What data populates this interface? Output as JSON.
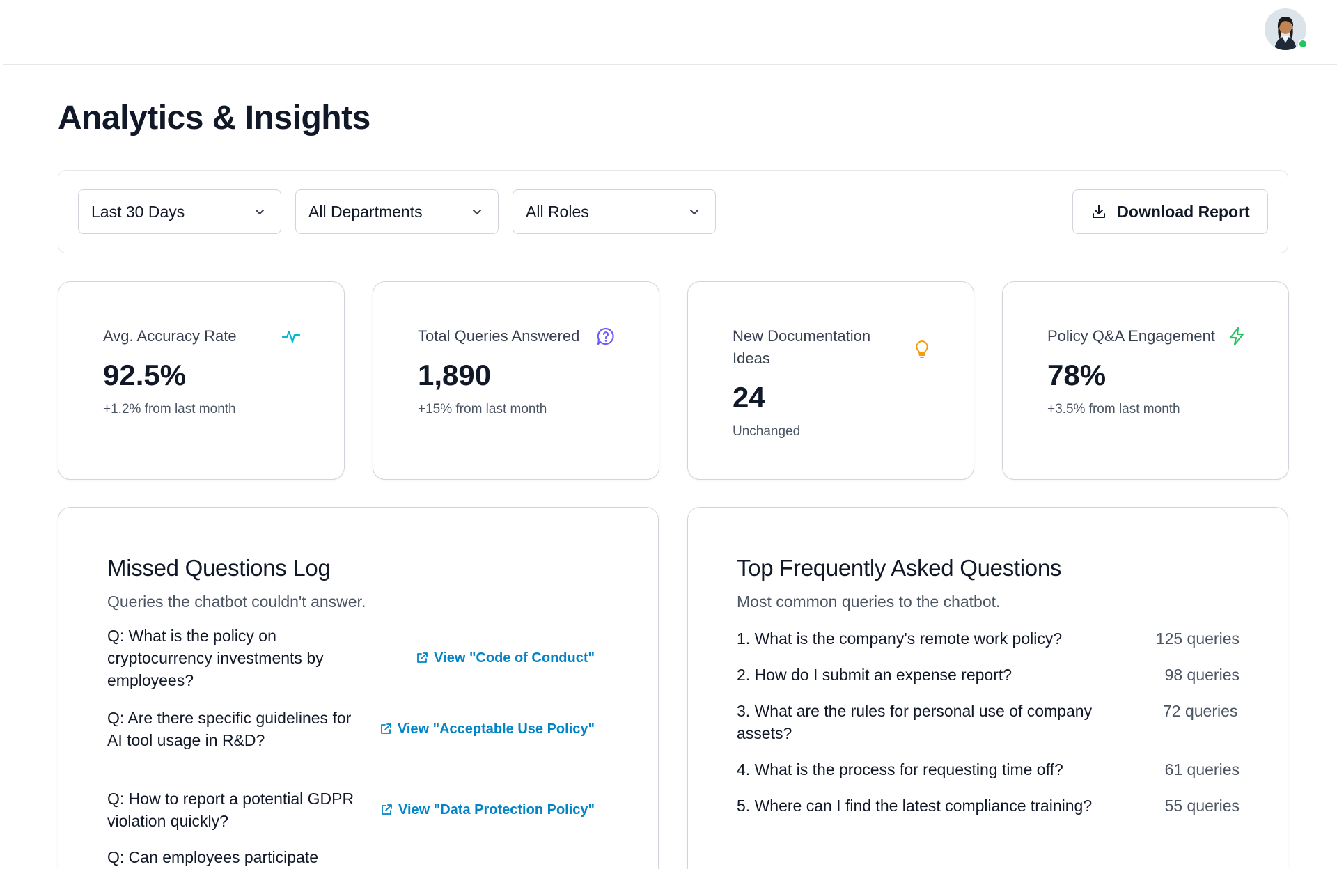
{
  "page": {
    "title": "Analytics & Insights"
  },
  "filters": {
    "period": "Last 30 Days",
    "department": "All Departments",
    "role": "All Roles",
    "download_label": "Download Report"
  },
  "stats": [
    {
      "label": "Avg. Accuracy Rate",
      "value": "92.5%",
      "delta": "+1.2% from last month",
      "icon": "activity-icon",
      "icon_color": "#06b6d4"
    },
    {
      "label": "Total Queries Answered",
      "value": "1,890",
      "delta": "+15% from last month",
      "icon": "chat-question-icon",
      "icon_color": "#6d5dfc"
    },
    {
      "label": "New Documentation Ideas",
      "value": "24",
      "delta": "Unchanged",
      "icon": "lightbulb-icon",
      "icon_color": "#f59e0b"
    },
    {
      "label": "Policy Q&A Engagement",
      "value": "78%",
      "delta": "+3.5% from last month",
      "icon": "lightning-icon",
      "icon_color": "#22c55e"
    }
  ],
  "missed_log": {
    "title": "Missed Questions Log",
    "subtitle": "Queries the chatbot couldn't answer.",
    "items": [
      {
        "question": "Q: What is the policy on cryptocurrency investments by employees?",
        "link": "View \"Code of Conduct\""
      },
      {
        "question": "Q: Are there specific guidelines for AI tool usage in R&D?",
        "link": "View \"Acceptable Use Policy\""
      },
      {
        "question": "Q: How to report a potential GDPR violation quickly?",
        "link": "View \"Data Protection Policy\""
      },
      {
        "question": "Q: Can employees participate",
        "link": ""
      }
    ]
  },
  "faq": {
    "title": "Top Frequently Asked Questions",
    "subtitle": "Most common queries to the chatbot.",
    "items": [
      {
        "question": "1. What is the company's remote work policy?",
        "count": "125 queries"
      },
      {
        "question": "2. How do I submit an expense report?",
        "count": "98 queries"
      },
      {
        "question": "3. What are the rules for personal use of company assets?",
        "count": "72 queries"
      },
      {
        "question": "4. What is the process for requesting time off?",
        "count": "61 queries"
      },
      {
        "question": "5. Where can I find the latest compliance training?",
        "count": "55 queries"
      }
    ]
  },
  "user": {
    "status": "online",
    "status_color": "#22c55e"
  }
}
